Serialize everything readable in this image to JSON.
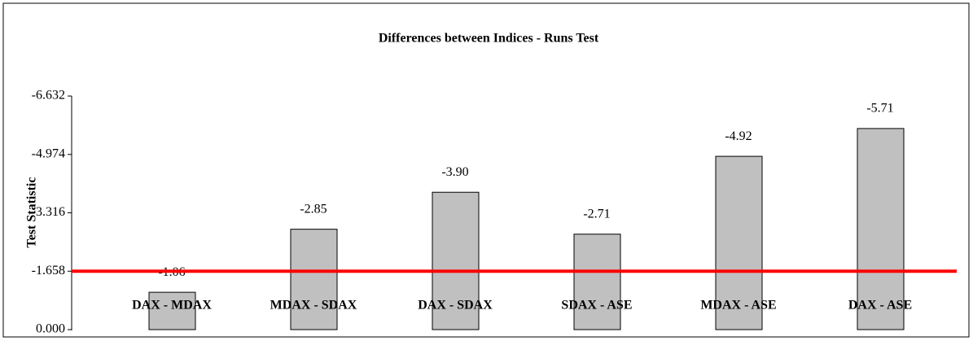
{
  "chart_data": {
    "type": "bar",
    "title": "Differences between Indices - Runs Test",
    "y_label": "Test Statistic",
    "categories": [
      "DAX - MDAX",
      "MDAX - SDAX",
      "DAX - SDAX",
      "SDAX - ASE",
      "MDAX - ASE",
      "DAX - ASE"
    ],
    "values": [
      -1.06,
      -2.85,
      -3.9,
      -2.71,
      -4.92,
      -5.71
    ],
    "value_labels": [
      "-1.06",
      "-2.85",
      "-3.90",
      "-2.71",
      "-4.92",
      "-5.71"
    ],
    "color": "#c0c0c0",
    "ylim": [
      0,
      -6.632
    ],
    "yticks": [
      {
        "value": 0,
        "label": "0.000"
      },
      -1.658,
      -3.316,
      -4.974,
      -6.632
    ],
    "reference_line": {
      "value": -1.658,
      "color": "#ff0000"
    }
  }
}
